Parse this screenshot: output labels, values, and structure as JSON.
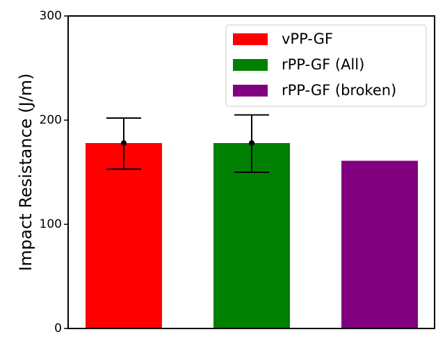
{
  "chart_data": {
    "type": "bar",
    "title": "",
    "xlabel": "",
    "ylabel": "Impact Resistance (J/m)",
    "ylim": [
      0,
      300
    ],
    "yticks": [
      0,
      100,
      200,
      300
    ],
    "grid": false,
    "legend_position": "top-right",
    "series": [
      {
        "name": "vPP-GF",
        "value": 178,
        "error_low": 153,
        "error_high": 202,
        "mean_marker": 178,
        "color": "#ff0000"
      },
      {
        "name": "rPP-GF (All)",
        "value": 178,
        "error_low": 150,
        "error_high": 205,
        "mean_marker": 178,
        "color": "#008000"
      },
      {
        "name": "rPP-GF (broken)",
        "value": 161,
        "color": "#800080"
      }
    ]
  }
}
